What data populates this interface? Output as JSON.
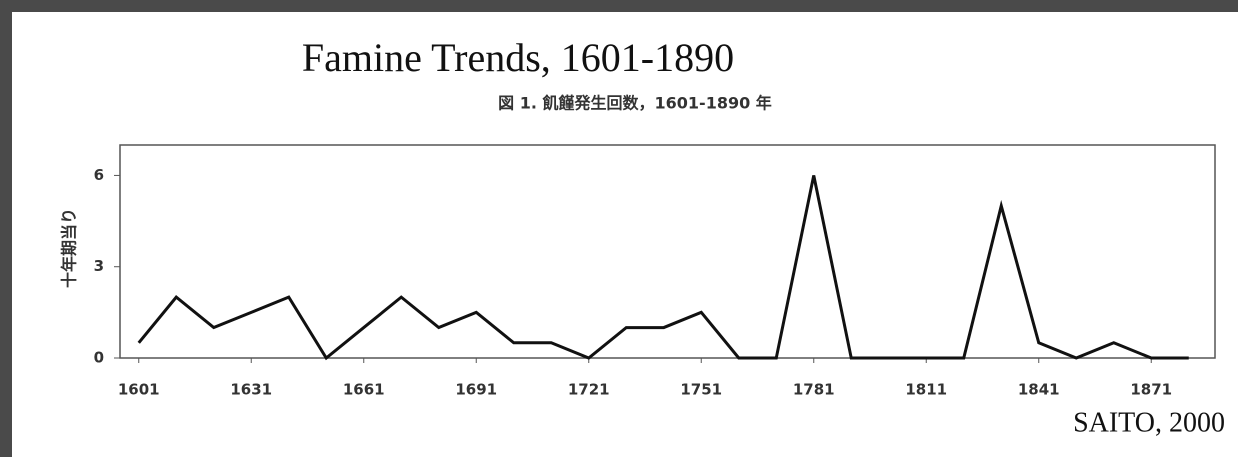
{
  "chart_data": {
    "type": "line",
    "title": "Famine Trends, 1601-1890",
    "subtitle": "図 1.  飢饉発生回数，1601-1890 年",
    "y_label": "十年期当り",
    "annotation": "SAITO, 2000",
    "x": [
      1601,
      1611,
      1621,
      1631,
      1641,
      1651,
      1661,
      1671,
      1681,
      1691,
      1701,
      1711,
      1721,
      1731,
      1741,
      1751,
      1761,
      1771,
      1781,
      1791,
      1801,
      1811,
      1821,
      1831,
      1841,
      1851,
      1861,
      1871,
      1881
    ],
    "series": [
      {
        "name": "飢饉発生回数",
        "color": "#111111",
        "values": [
          0.5,
          2,
          1,
          1.5,
          2,
          0,
          1,
          2,
          1,
          1.5,
          0.5,
          0.5,
          0,
          1,
          1,
          1.5,
          0,
          0,
          6,
          0,
          0,
          0,
          0,
          5,
          0.5,
          0,
          0.5,
          0,
          0
        ]
      }
    ],
    "xlim": [
      1596,
      1888
    ],
    "xticks": [
      1601,
      1631,
      1661,
      1691,
      1721,
      1751,
      1781,
      1811,
      1841,
      1871
    ],
    "ylim": [
      0,
      7
    ],
    "yticks": [
      0,
      3,
      6
    ],
    "grid": false
  }
}
